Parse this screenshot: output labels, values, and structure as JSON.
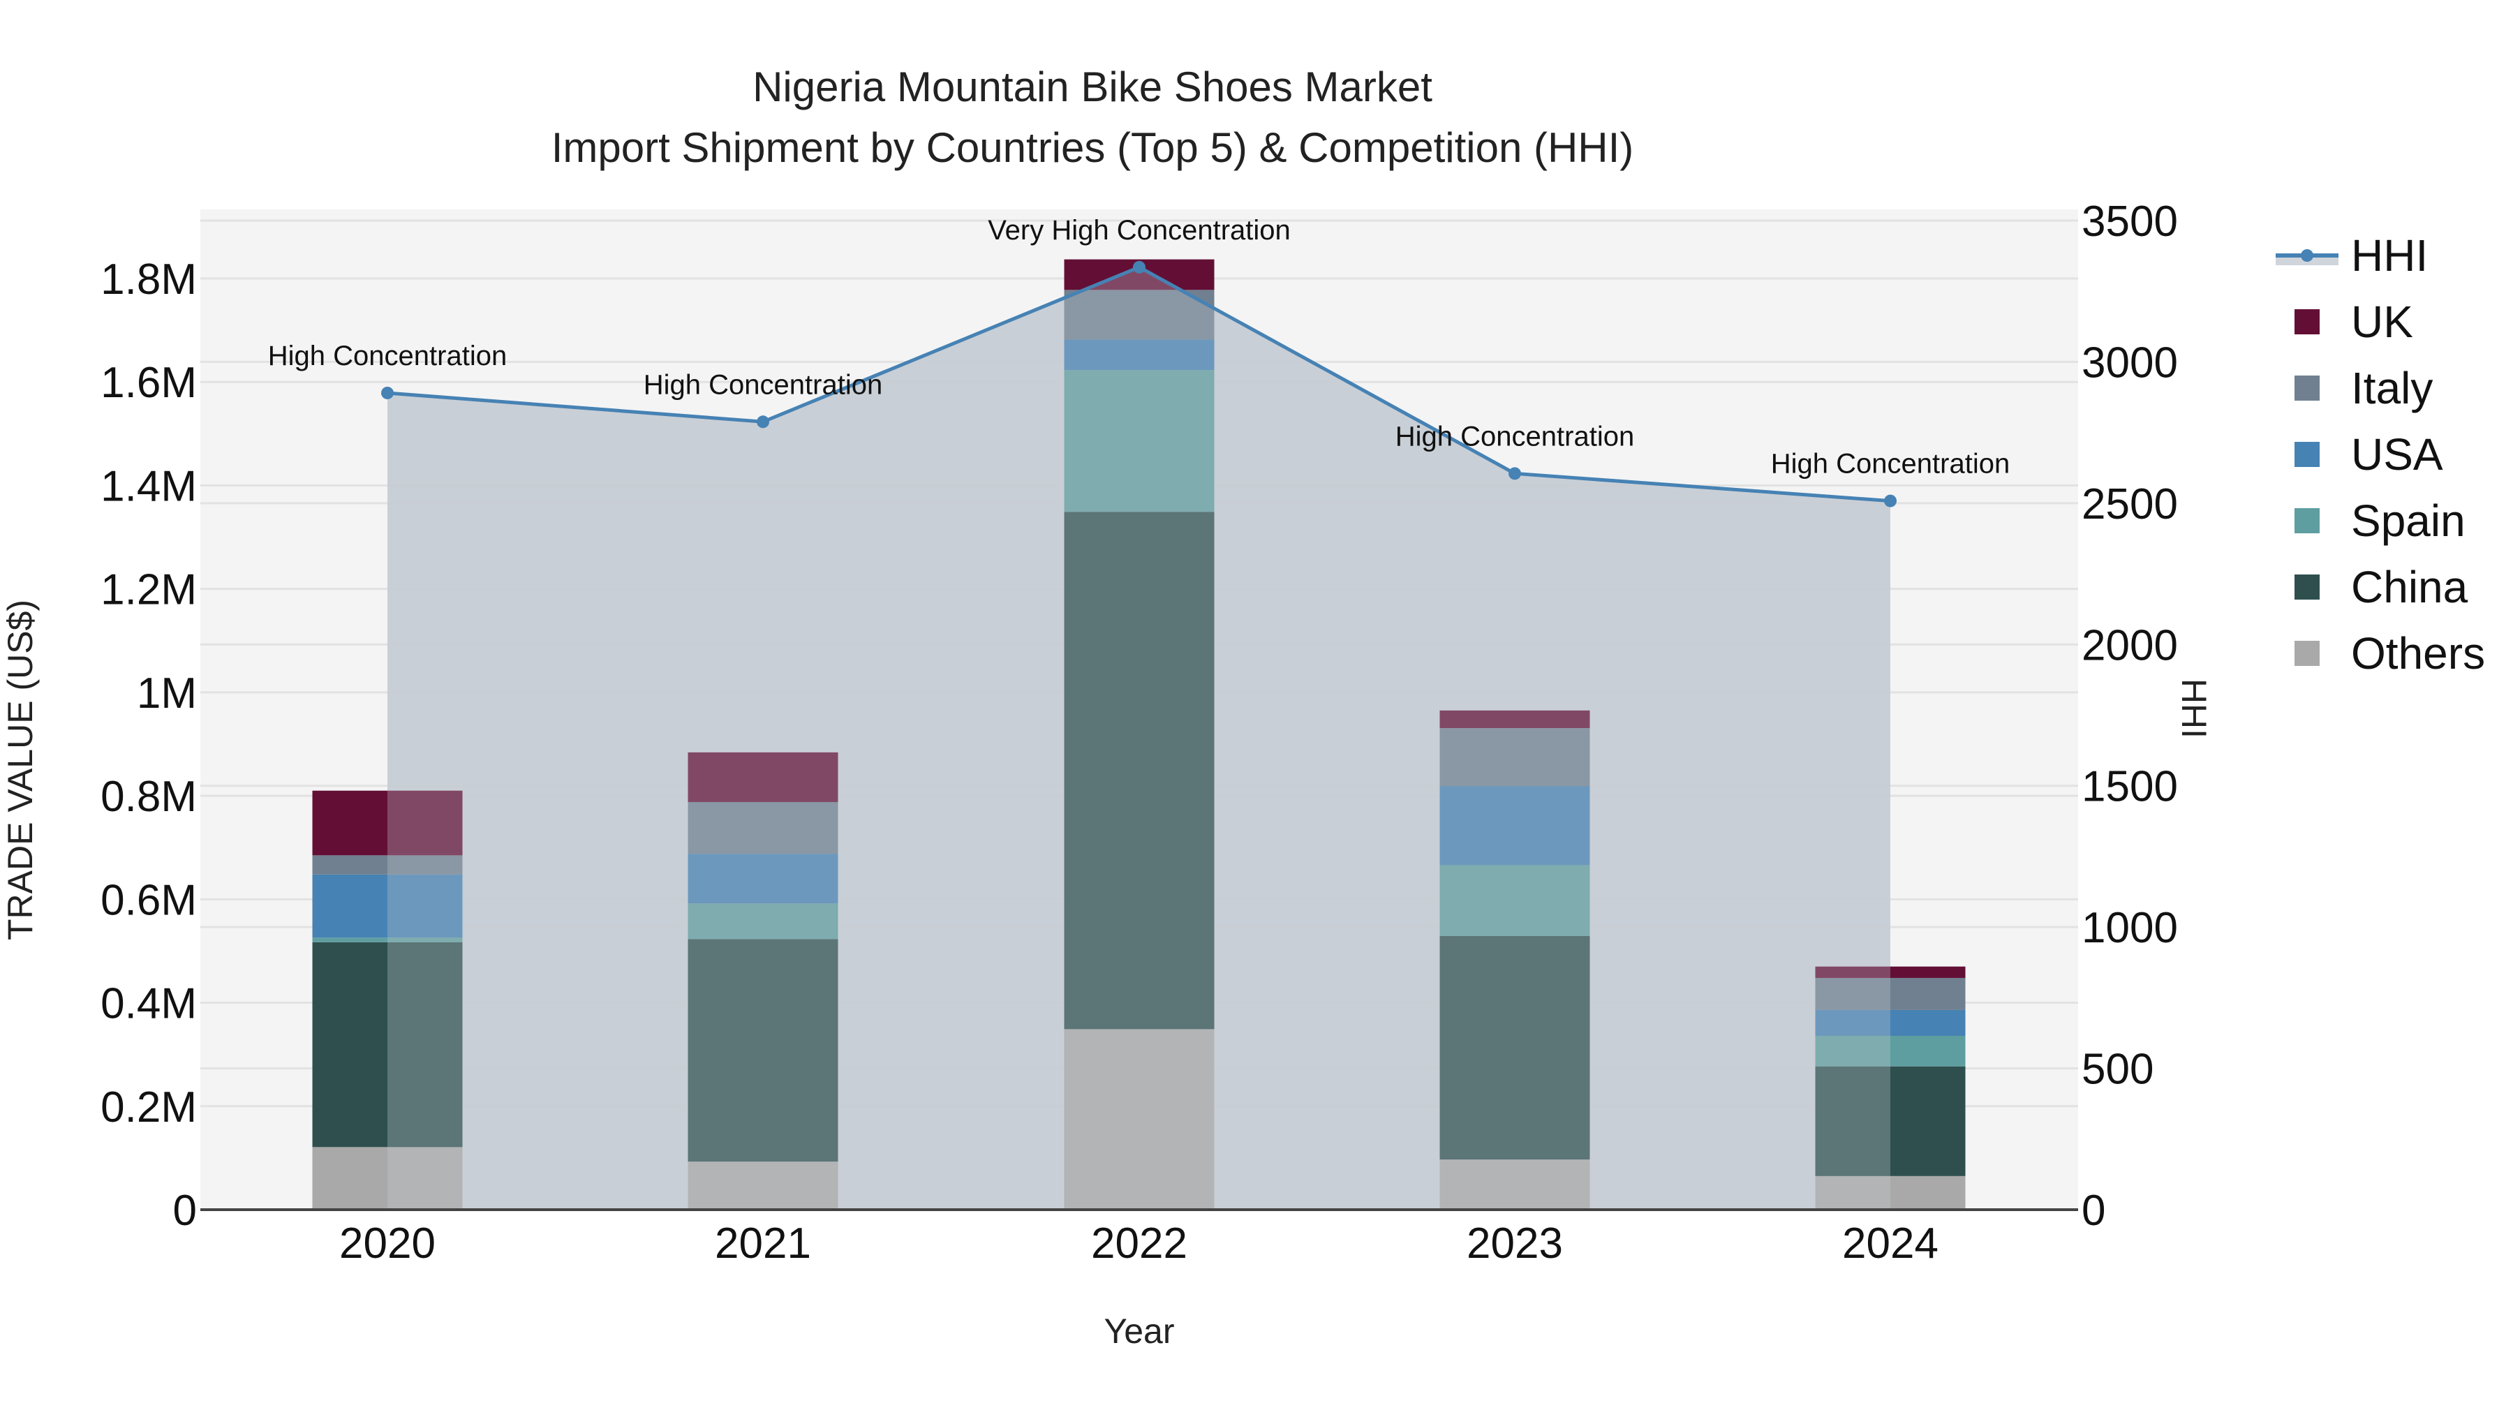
{
  "chart_data": {
    "type": "bar",
    "subtype": "stacked bar with line overlay (secondary axis)",
    "title": "Nigeria Mountain Bike Shoes Market",
    "subtitle": "Import Shipment by Countries (Top 5) & Competition (HHI)",
    "xlabel": "Year",
    "ylabel": "TRADE VALUE (US$)",
    "y2label": "HHI",
    "categories": [
      "2020",
      "2021",
      "2022",
      "2023",
      "2024"
    ],
    "ylim": [
      0,
      1900000
    ],
    "y_ticks": [
      0,
      200000,
      400000,
      600000,
      800000,
      1000000,
      1200000,
      1400000,
      1600000,
      1800000
    ],
    "y_tick_labels": [
      "0",
      "0.2M",
      "0.4M",
      "0.6M",
      "0.8M",
      "1M",
      "1.2M",
      "1.4M",
      "1.6M",
      "1.8M"
    ],
    "y2lim": [
      0,
      3550
    ],
    "y2_ticks": [
      0,
      500,
      1000,
      1500,
      2000,
      2500,
      3000,
      3500
    ],
    "y2_tick_labels": [
      "0",
      "500",
      "1000",
      "1500",
      "2000",
      "2500",
      "3000",
      "3500"
    ],
    "grid": true,
    "legend_position": "right",
    "series": [
      {
        "name": "Others",
        "color": "#a9a9a9",
        "values": [
          121000,
          93000,
          349000,
          97000,
          65000
        ]
      },
      {
        "name": "China",
        "color": "#2f4f4f",
        "values": [
          396000,
          430000,
          1000000,
          432000,
          212000
        ]
      },
      {
        "name": "Spain",
        "color": "#5f9ea0",
        "values": [
          9000,
          69000,
          274000,
          137000,
          59000
        ]
      },
      {
        "name": "USA",
        "color": "#4682b4",
        "values": [
          122000,
          96000,
          59000,
          153000,
          50000
        ]
      },
      {
        "name": "Italy",
        "color": "#708090",
        "values": [
          37000,
          100000,
          96000,
          112000,
          62000
        ]
      },
      {
        "name": "UK",
        "color": "#630f35",
        "values": [
          125000,
          96000,
          59000,
          34000,
          22000
        ]
      }
    ],
    "line_series": {
      "name": "HHI",
      "color": "#4682b4",
      "fill_color": "#c8cdd5",
      "axis": "y2",
      "values": [
        2890,
        2788,
        3335,
        2605,
        2508
      ]
    },
    "annotations": [
      {
        "x": "2020",
        "text": "High Concentration"
      },
      {
        "x": "2021",
        "text": "High Concentration"
      },
      {
        "x": "2022",
        "text": "Very High Concentration"
      },
      {
        "x": "2023",
        "text": "High Concentration"
      },
      {
        "x": "2024",
        "text": "High Concentration"
      }
    ]
  },
  "legend": {
    "items": [
      {
        "label": "HHI",
        "kind": "line",
        "color": "#4682b4"
      },
      {
        "label": "UK",
        "kind": "box",
        "color": "#630f35"
      },
      {
        "label": "Italy",
        "kind": "box",
        "color": "#708090"
      },
      {
        "label": "USA",
        "kind": "box",
        "color": "#4682b4"
      },
      {
        "label": "Spain",
        "kind": "box",
        "color": "#5f9ea0"
      },
      {
        "label": "China",
        "kind": "box",
        "color": "#2f4f4f"
      },
      {
        "label": "Others",
        "kind": "box",
        "color": "#a9a9a9"
      }
    ]
  },
  "colors": {
    "plot_bg": "#f4f4f4",
    "grid": "#e2e2e2",
    "axis_line": "#444444"
  }
}
